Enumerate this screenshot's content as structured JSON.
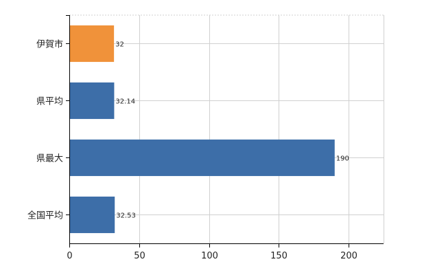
{
  "chart_data": {
    "type": "bar",
    "orientation": "horizontal",
    "categories": [
      "伊賀市",
      "県平均",
      "県最大",
      "全国平均"
    ],
    "values": [
      32,
      32.14,
      190,
      32.53
    ],
    "data_labels": [
      "32",
      "32.14",
      "190",
      "32.53"
    ],
    "highlight_index": 0,
    "colors": {
      "highlight": "#f0923a",
      "default": "#3d6ea8"
    },
    "xlim": [
      0,
      225
    ],
    "x_ticks": [
      0,
      50,
      100,
      150,
      200
    ],
    "x_tick_labels": [
      "0",
      "50",
      "100",
      "150",
      "200"
    ],
    "grid": true,
    "title": "",
    "xlabel": "",
    "ylabel": ""
  }
}
